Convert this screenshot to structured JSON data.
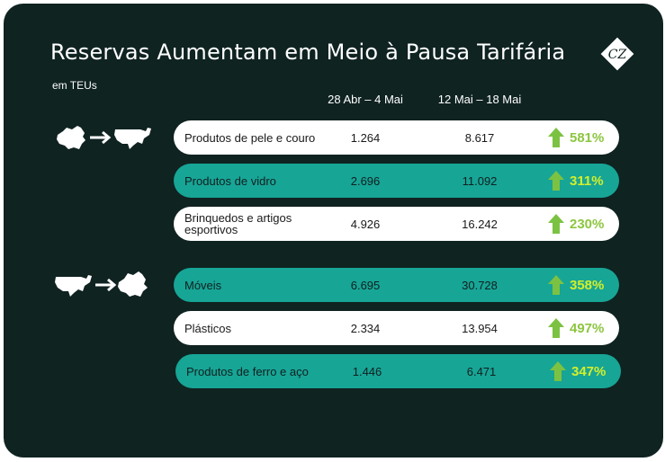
{
  "header": {
    "title": "Reservas Aumentam em Meio à Pausa Tarifária",
    "unit": "em TEUs",
    "logo_text": "CZ"
  },
  "columns": [
    "28 Abr – 4 Mai",
    "12 Mai – 18 Mai"
  ],
  "routes": [
    {
      "from": "china-icon",
      "to": "usa-icon"
    },
    {
      "from": "usa-icon",
      "to": "china-icon"
    }
  ],
  "rows": [
    {
      "label": "Produtos de pele e couro",
      "v1": "1.264",
      "v2": "8.617",
      "pct": "581%"
    },
    {
      "label": "Produtos de vidro",
      "v1": "2.696",
      "v2": "11.092",
      "pct": "311%"
    },
    {
      "label": "Brinquedos e artigos esportivos",
      "v1": "4.926",
      "v2": "16.242",
      "pct": "230%"
    },
    {
      "label": "Móveis",
      "v1": "6.695",
      "v2": "30.728",
      "pct": "358%"
    },
    {
      "label": "Plásticos",
      "v1": "2.334",
      "v2": "13.954",
      "pct": "497%"
    },
    {
      "label": "Produtos de ferro e aço",
      "v1": "1.446",
      "v2": "6.471",
      "pct": "347%"
    }
  ],
  "colors": {
    "background": "#0f2321",
    "teal": "#17a596",
    "arrow_green": "#7cc242",
    "pct_white_row": "#8cc63f",
    "pct_teal_row": "#d4ef2a"
  },
  "chart_data": {
    "type": "table",
    "title": "Reservas Aumentam em Meio à Pausa Tarifária",
    "subtitle": "em TEUs",
    "columns": [
      "28 Abr – 4 Mai",
      "12 Mai – 18 Mai"
    ],
    "groups": [
      {
        "route": "China → EUA",
        "categories": [
          "Produtos de pele e couro",
          "Produtos de vidro",
          "Brinquedos e artigos esportivos"
        ],
        "series": [
          {
            "name": "28 Abr – 4 Mai",
            "values": [
              1264,
              2696,
              4926
            ]
          },
          {
            "name": "12 Mai – 18 Mai",
            "values": [
              8617,
              11092,
              16242
            ]
          }
        ],
        "change_pct": [
          581,
          311,
          230
        ]
      },
      {
        "route": "EUA → China",
        "categories": [
          "Móveis",
          "Plásticos",
          "Produtos de ferro e aço"
        ],
        "series": [
          {
            "name": "28 Abr – 4 Mai",
            "values": [
              6695,
              2334,
              1446
            ]
          },
          {
            "name": "12 Mai – 18 Mai",
            "values": [
              30728,
              13954,
              6471
            ]
          }
        ],
        "change_pct": [
          358,
          497,
          347
        ]
      }
    ]
  }
}
